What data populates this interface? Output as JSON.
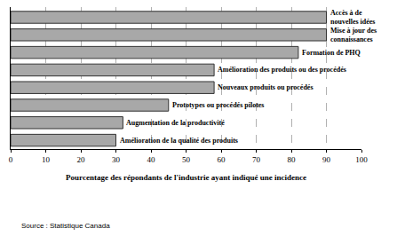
{
  "chart_data": {
    "type": "bar",
    "orientation": "horizontal",
    "categories": [
      "Accès à de nouvelles idées",
      "Mise à jour des connaissances",
      "Formation de PHQ",
      "Amélioration des produits ou des procédés",
      "Nouveaux produits ou procédés",
      "Prototypes ou procédés pilotes",
      "Augmentation de la productivité",
      "Amélioration de la qualité des produits"
    ],
    "values": [
      90,
      90,
      82,
      58,
      58,
      45,
      32,
      30
    ],
    "color": "#a8a8a8",
    "x_label": "Pourcentage des répondants de l'industrie ayant indiqué une incidence",
    "source": "Source : Statistique Canada",
    "xlim": [
      0,
      100
    ],
    "xticks": [
      0,
      10,
      20,
      30,
      40,
      50,
      60,
      70,
      80,
      90,
      100
    ],
    "grid": true,
    "tick_labels": "x"
  }
}
